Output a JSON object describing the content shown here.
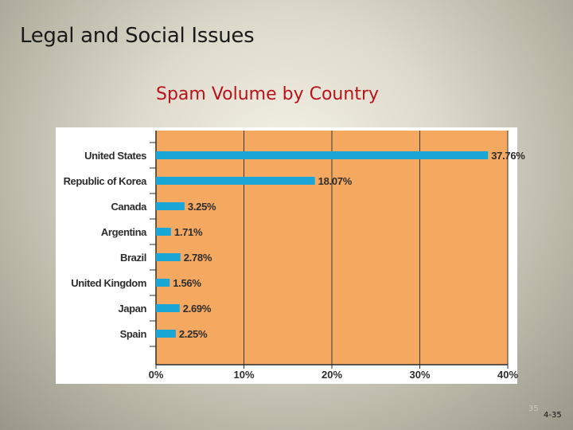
{
  "slide": {
    "title": "Legal and Social Issues",
    "page_small": "35",
    "page": "4-35"
  },
  "colors": {
    "plot_background": "#f5a860",
    "bar": "#1aa7d8",
    "heading": "#b8131a"
  },
  "chart_data": {
    "type": "bar",
    "orientation": "horizontal",
    "title": "Spam Volume by Country",
    "categories": [
      "United States",
      "Republic of Korea",
      "Canada",
      "Argentina",
      "Brazil",
      "United Kingdom",
      "Japan",
      "Spain"
    ],
    "values": [
      37.76,
      18.07,
      3.25,
      1.71,
      2.78,
      1.56,
      2.69,
      2.25
    ],
    "value_labels": [
      "37.76%",
      "18.07%",
      "3.25%",
      "1.71%",
      "2.78%",
      "1.56%",
      "2.69%",
      "2.25%"
    ],
    "xlim": [
      0,
      40
    ],
    "xticks": [
      0,
      10,
      20,
      30,
      40
    ],
    "xtick_labels": [
      "0%",
      "10%",
      "20%",
      "30%",
      "40%"
    ],
    "xlabel": "",
    "ylabel": "",
    "grid": "vertical",
    "legend": "none"
  }
}
